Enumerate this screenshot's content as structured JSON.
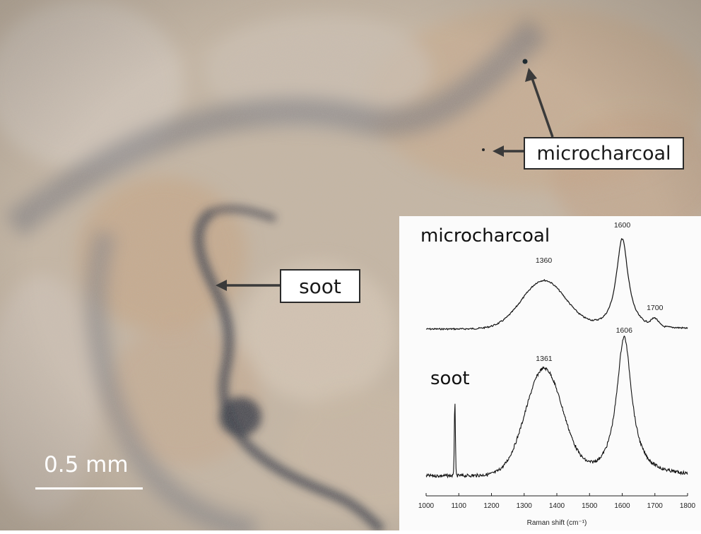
{
  "photo": {
    "scale_bar_text": "0.5 mm",
    "labels": {
      "microcharcoal": "microcharcoal",
      "soot": "soot"
    }
  },
  "chart_data": {
    "type": "line",
    "xlabel": "Raman shift (cm⁻¹)",
    "xlim": [
      1000,
      1800
    ],
    "x_ticks": [
      "1000",
      "1100",
      "1200",
      "1300",
      "1400",
      "1500",
      "1600",
      "1700",
      "1800"
    ],
    "series": [
      {
        "name": "microcharcoal",
        "peaks": [
          {
            "x": 1360,
            "label": "1360"
          },
          {
            "x": 1600,
            "label": "1600"
          },
          {
            "x": 1700,
            "label": "1700"
          }
        ]
      },
      {
        "name": "soot",
        "peaks": [
          {
            "x": 1361,
            "label": "1361"
          },
          {
            "x": 1606,
            "label": "1606"
          }
        ]
      }
    ]
  },
  "colors": {
    "arrow": "#3a3a3a",
    "soot_band": "#3d3f4a",
    "sediment": "#c8b49c"
  }
}
